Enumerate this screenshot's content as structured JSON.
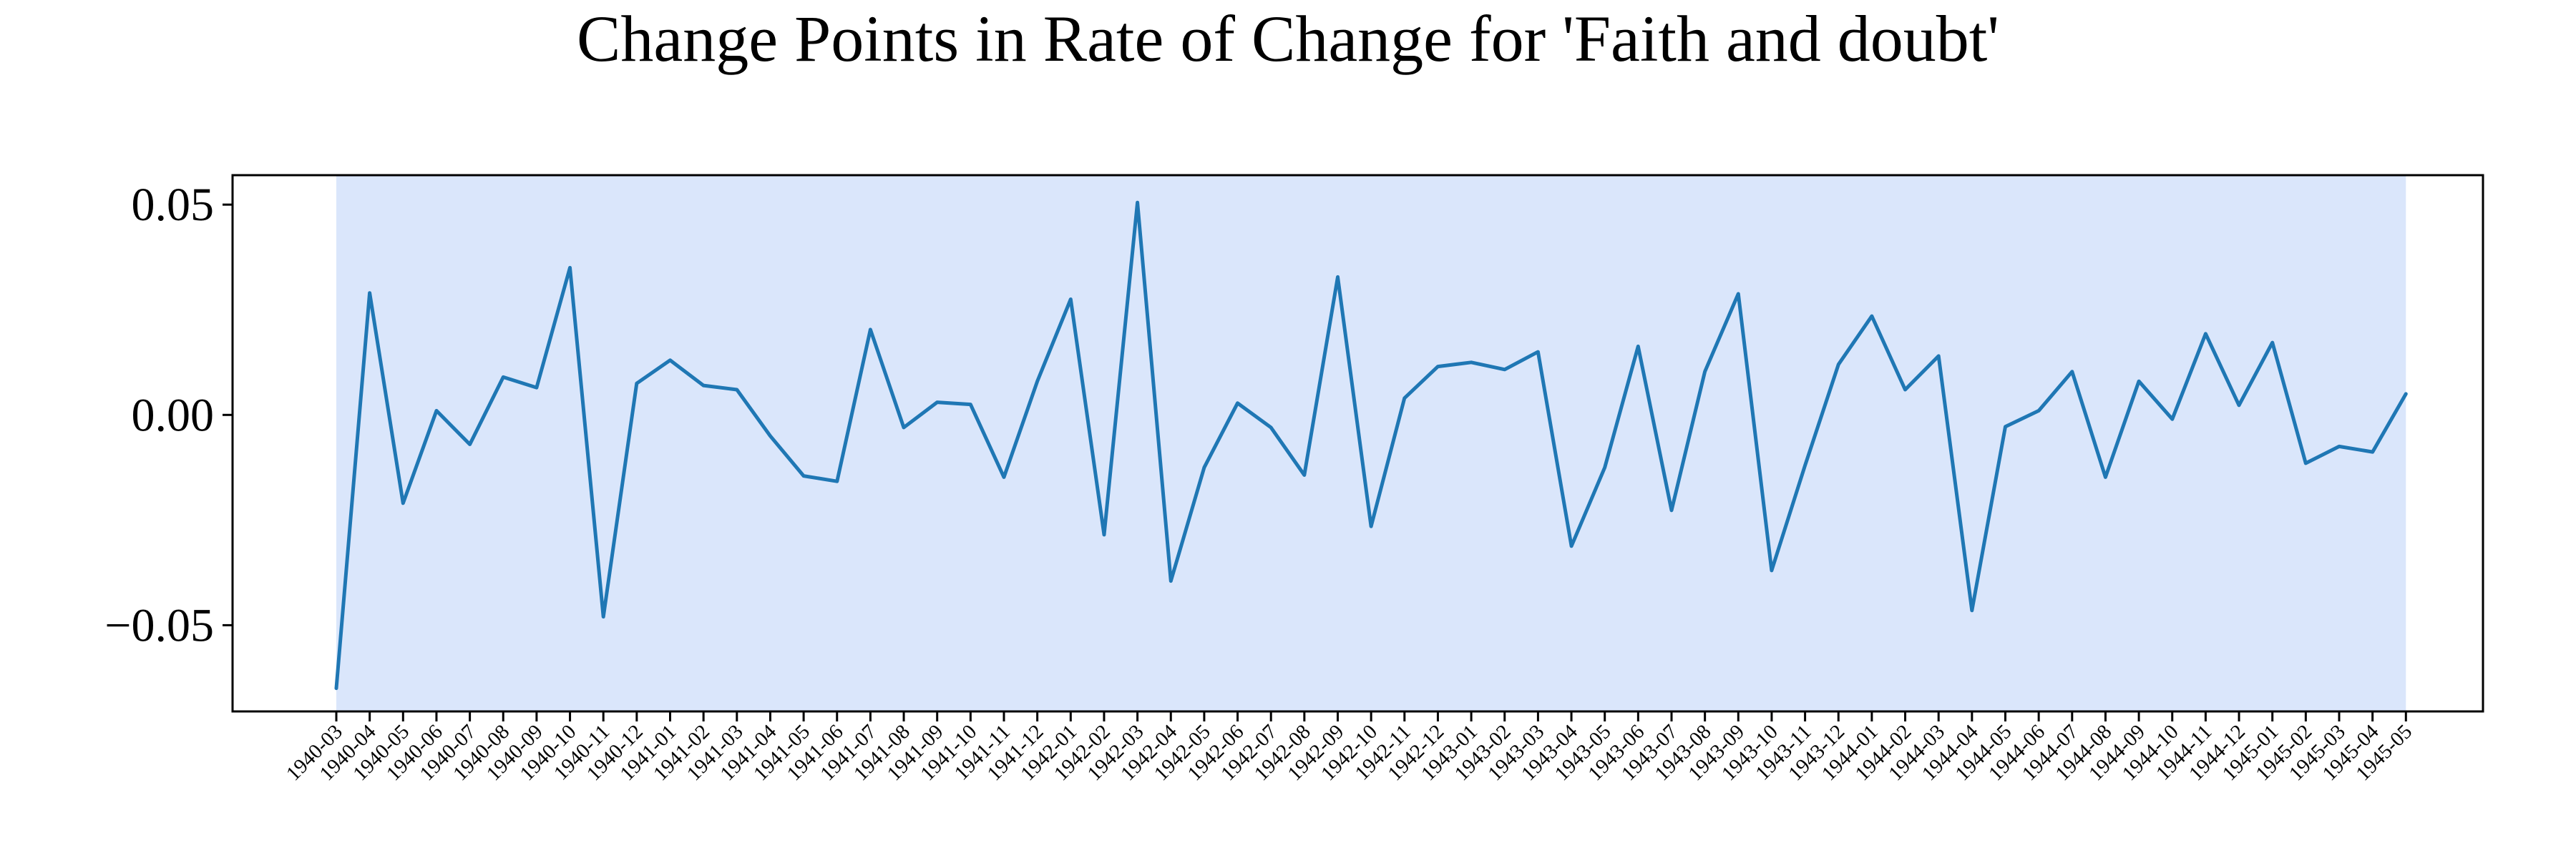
{
  "chart_data": {
    "type": "line",
    "title": "Change Points in Rate of Change for 'Faith and doubt'",
    "xlabel": "",
    "ylabel": "",
    "ylim": [
      -0.0705,
      0.057
    ],
    "grid": false,
    "line_color": "#1f77b4",
    "shade_color": "#dae6fb",
    "shaded_region": {
      "start": "1940-03",
      "end": "1945-05"
    },
    "yticks": [
      {
        "value": 0.05,
        "label": "0.05"
      },
      {
        "value": 0.0,
        "label": "0.00"
      },
      {
        "value": -0.05,
        "label": "−0.05"
      }
    ],
    "x": [
      "1940-03",
      "1940-04",
      "1940-05",
      "1940-06",
      "1940-07",
      "1940-08",
      "1940-09",
      "1940-10",
      "1940-11",
      "1940-12",
      "1941-01",
      "1941-02",
      "1941-03",
      "1941-04",
      "1941-05",
      "1941-06",
      "1941-07",
      "1941-08",
      "1941-09",
      "1941-10",
      "1941-11",
      "1941-12",
      "1942-01",
      "1942-02",
      "1942-03",
      "1942-04",
      "1942-05",
      "1942-06",
      "1942-07",
      "1942-08",
      "1942-09",
      "1942-10",
      "1942-11",
      "1942-12",
      "1943-01",
      "1943-02",
      "1943-03",
      "1943-04",
      "1943-05",
      "1943-06",
      "1943-07",
      "1943-08",
      "1943-09",
      "1943-10",
      "1943-11",
      "1943-12",
      "1944-01",
      "1944-02",
      "1944-03",
      "1944-04",
      "1944-05",
      "1944-06",
      "1944-07",
      "1944-08",
      "1944-09",
      "1944-10",
      "1944-11",
      "1944-12",
      "1945-01",
      "1945-02",
      "1945-03",
      "1945-04",
      "1945-05"
    ],
    "values": [
      -0.065,
      0.029,
      -0.021,
      0.001,
      -0.007,
      0.009,
      0.0065,
      0.035,
      -0.048,
      0.0075,
      0.013,
      0.007,
      0.006,
      -0.005,
      -0.0145,
      -0.0158,
      0.0203,
      -0.003,
      0.003,
      0.0025,
      -0.0148,
      0.008,
      0.0275,
      -0.0285,
      0.0505,
      -0.0395,
      -0.0125,
      0.0028,
      -0.003,
      -0.0143,
      0.0328,
      -0.0265,
      0.004,
      0.0115,
      0.0125,
      0.0108,
      0.015,
      -0.0312,
      -0.0125,
      0.0163,
      -0.0227,
      0.0103,
      0.0288,
      -0.037,
      -0.012,
      0.012,
      0.0235,
      0.006,
      0.014,
      -0.0465,
      -0.0028,
      0.001,
      0.0103,
      -0.0148,
      0.008,
      -0.001,
      0.0193,
      0.0023,
      0.0172,
      -0.0115,
      -0.0075,
      -0.0088,
      0.005
    ]
  }
}
